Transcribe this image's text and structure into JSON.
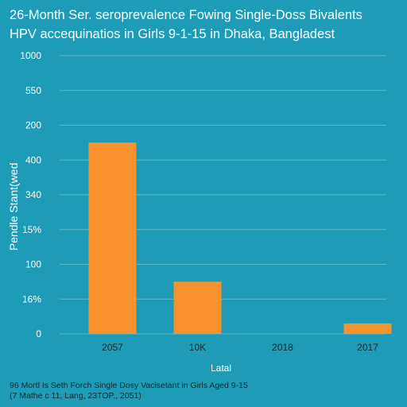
{
  "colors": {
    "background": "#1e9bb6",
    "bar": "#f7922f",
    "text": "#ffffff",
    "dark_text": "#0f2a33",
    "grid": "#8fd0df"
  },
  "chart_data": {
    "type": "bar",
    "title_line1": "26-Month Ser. seroprevalence Fowing Single-Doss Bivalents",
    "title_line2": "HPV accequinatios in Girls 9-1-15 in Dhaka, Bangladest",
    "ylabel": "Pendle Stant(wed",
    "xlabel": "Latal",
    "y_ticks": [
      "1000",
      "550",
      "200",
      "400",
      "340",
      "15%",
      "100",
      "16%",
      "0"
    ],
    "categories": [
      "2057",
      "10K",
      "2018",
      "2017"
    ],
    "values": [
      55,
      15,
      0,
      3
    ],
    "ylim": [
      0,
      80
    ],
    "y_tick_step": 10,
    "grid": true,
    "footnote_line1": "96 Mortl Is Seth Forch Single Dosy Vacisetant in Girls Aged 9-15",
    "footnote_line2": "(7 Mathe c 11, Lang, 23TOP., 2051)"
  }
}
